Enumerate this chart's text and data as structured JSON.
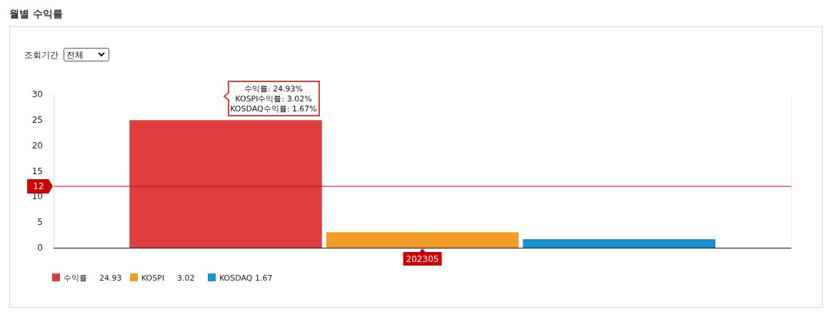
{
  "chart_data": {
    "type": "bar",
    "title": "월별 수익률",
    "categories": [
      "202305"
    ],
    "series": [
      {
        "name": "수익률",
        "color": "#e03e3e",
        "values": [
          24.93
        ]
      },
      {
        "name": "KOSPI",
        "color": "#f29c28",
        "values": [
          3.02
        ]
      },
      {
        "name": "KOSDAQ",
        "color": "#1791d0",
        "values": [
          1.67
        ]
      }
    ],
    "ylim": [
      0,
      30
    ],
    "yticks": [
      0,
      5,
      10,
      15,
      20,
      25,
      30
    ],
    "ref_lines": [
      {
        "axis": "y",
        "value": 12,
        "label": "12",
        "color": "#cc0000"
      }
    ],
    "legend": "bottom left",
    "annotations": [
      "조회기간",
      "전체",
      "수익률: 24.93%",
      "KOSPI수익률: 3.02%",
      "KOSDAQ수익률: 1.67%",
      "24.93",
      "3.02",
      "1.67"
    ]
  }
}
